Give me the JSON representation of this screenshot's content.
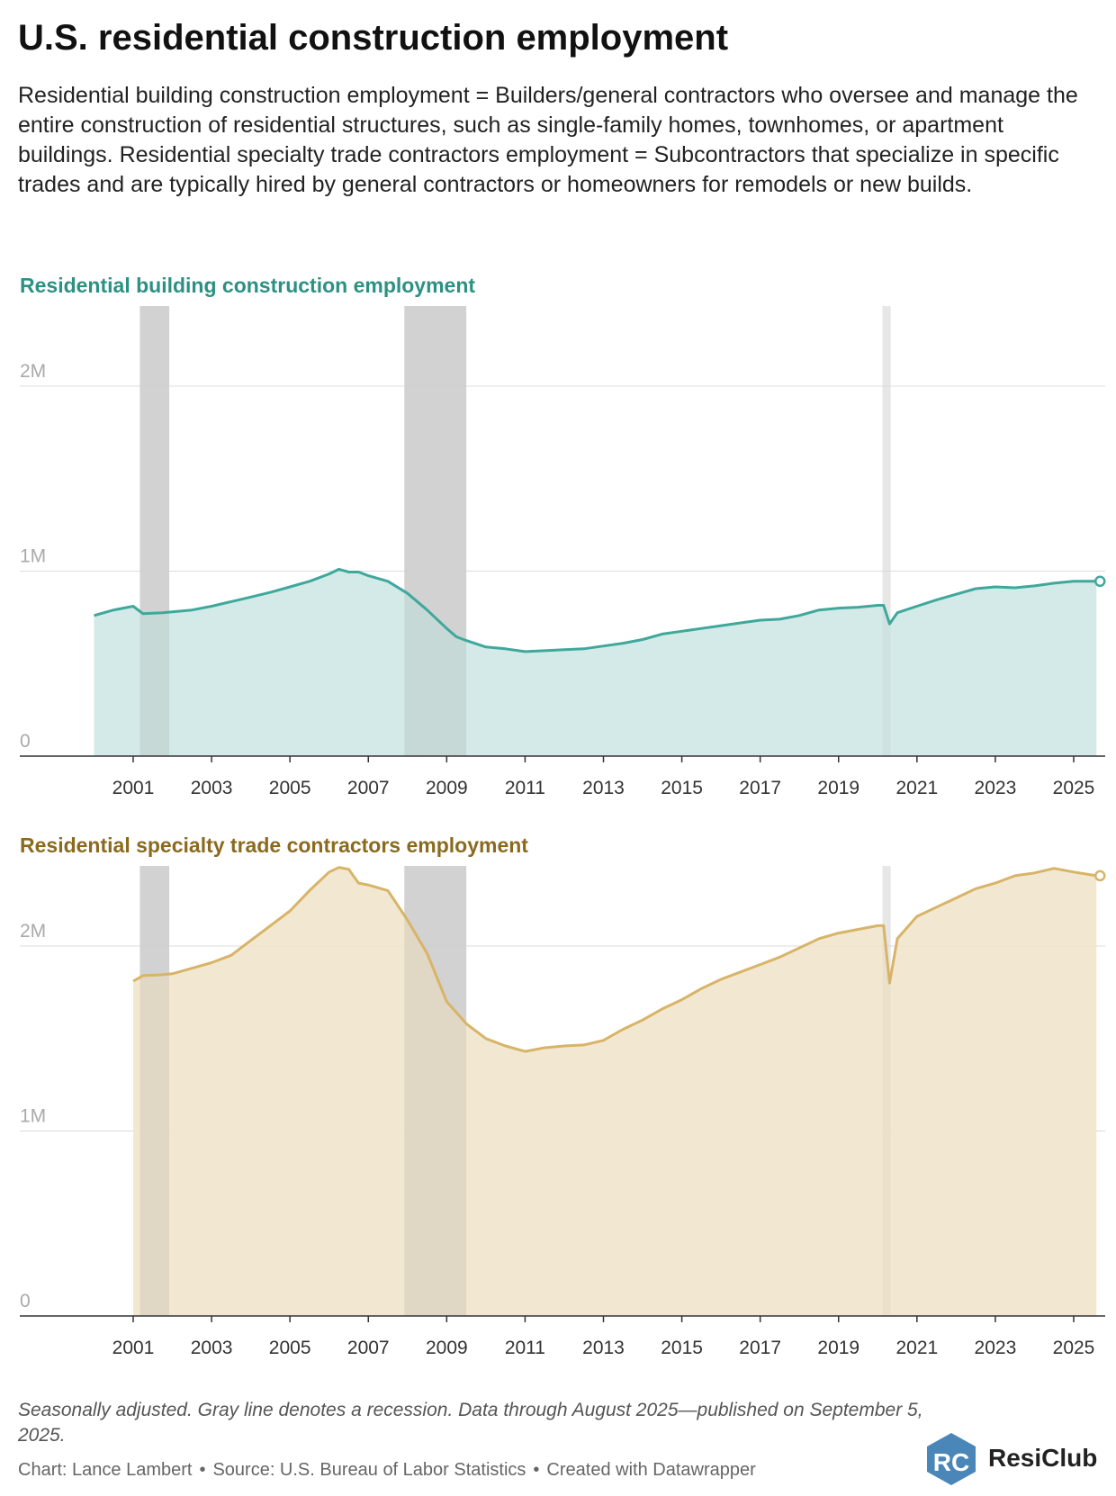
{
  "title": "U.S. residential construction employment",
  "description": "Residential building construction employment = Builders/general contractors who oversee and manage the entire construction of residential structures, such as single-family homes, townhomes, or apartment buildings. Residential specialty trade contractors employment = Subcontractors that specialize in specific trades and are typically hired by general contractors or homeowners for remodels or new builds.",
  "footnote": "Seasonally adjusted. Gray line denotes a recession. Data through August 2025—published on September 5, 2025.",
  "credits": {
    "chart": "Chart: Lance Lambert",
    "source": "Source: U.S. Bureau of Labor Statistics",
    "created": "Created with Datawrapper",
    "separator": "•"
  },
  "logo": {
    "text": "ResiClub",
    "mark_letters": "RC",
    "color": "#4a86b8"
  },
  "colors": {
    "teal": "#3fa89c",
    "teal_fill": "#cfe8e5",
    "teal_title": "#2b9183",
    "gold": "#d8b468",
    "gold_fill": "#f1e6cd",
    "gold_title": "#8b6a1e",
    "recession": "#d9d9d9"
  },
  "chart_data": [
    {
      "type": "area",
      "title": "Residential building construction employment",
      "series_color": "#3fa89c",
      "fill_color": "#cfe8e5",
      "x_ticks": [
        "2001",
        "2003",
        "2005",
        "2007",
        "2009",
        "2011",
        "2013",
        "2015",
        "2017",
        "2019",
        "2021",
        "2023",
        "2025"
      ],
      "y_ticks": [
        {
          "value": 0,
          "label": "0"
        },
        {
          "value": 1000000,
          "label": "1M"
        },
        {
          "value": 2000000,
          "label": "2M"
        }
      ],
      "xlim": [
        1999.0,
        2025.75
      ],
      "ylim": [
        0,
        2420000
      ],
      "grid": true,
      "recessions": [
        [
          2001.17,
          2001.92
        ],
        [
          2007.92,
          2009.5
        ],
        [
          2020.12,
          2020.33
        ]
      ],
      "points": [
        [
          2000.0,
          760000
        ],
        [
          2000.5,
          790000
        ],
        [
          2001.0,
          810000
        ],
        [
          2001.25,
          770000
        ],
        [
          2001.75,
          775000
        ],
        [
          2002.0,
          780000
        ],
        [
          2002.5,
          790000
        ],
        [
          2003.0,
          810000
        ],
        [
          2003.5,
          835000
        ],
        [
          2004.0,
          860000
        ],
        [
          2004.5,
          885000
        ],
        [
          2005.0,
          915000
        ],
        [
          2005.5,
          945000
        ],
        [
          2006.0,
          985000
        ],
        [
          2006.25,
          1010000
        ],
        [
          2006.5,
          995000
        ],
        [
          2006.75,
          995000
        ],
        [
          2007.0,
          975000
        ],
        [
          2007.5,
          945000
        ],
        [
          2008.0,
          880000
        ],
        [
          2008.5,
          790000
        ],
        [
          2009.0,
          690000
        ],
        [
          2009.25,
          645000
        ],
        [
          2009.5,
          625000
        ],
        [
          2010.0,
          590000
        ],
        [
          2010.5,
          580000
        ],
        [
          2011.0,
          565000
        ],
        [
          2011.5,
          570000
        ],
        [
          2012.0,
          575000
        ],
        [
          2012.5,
          580000
        ],
        [
          2013.0,
          595000
        ],
        [
          2013.5,
          610000
        ],
        [
          2014.0,
          630000
        ],
        [
          2014.5,
          660000
        ],
        [
          2015.0,
          675000
        ],
        [
          2015.5,
          690000
        ],
        [
          2016.0,
          705000
        ],
        [
          2016.5,
          720000
        ],
        [
          2017.0,
          735000
        ],
        [
          2017.5,
          740000
        ],
        [
          2018.0,
          760000
        ],
        [
          2018.5,
          790000
        ],
        [
          2019.0,
          800000
        ],
        [
          2019.5,
          805000
        ],
        [
          2020.0,
          815000
        ],
        [
          2020.15,
          815000
        ],
        [
          2020.3,
          715000
        ],
        [
          2020.5,
          775000
        ],
        [
          2021.0,
          810000
        ],
        [
          2021.5,
          845000
        ],
        [
          2022.0,
          875000
        ],
        [
          2022.5,
          905000
        ],
        [
          2023.0,
          915000
        ],
        [
          2023.5,
          910000
        ],
        [
          2024.0,
          920000
        ],
        [
          2024.5,
          935000
        ],
        [
          2025.0,
          945000
        ],
        [
          2025.58,
          945000
        ]
      ]
    },
    {
      "type": "area",
      "title": "Residential specialty trade contractors employment",
      "series_color": "#d8b468",
      "fill_color": "#f1e6cd",
      "x_ticks": [
        "2001",
        "2003",
        "2005",
        "2007",
        "2009",
        "2011",
        "2013",
        "2015",
        "2017",
        "2019",
        "2021",
        "2023",
        "2025"
      ],
      "y_ticks": [
        {
          "value": 0,
          "label": "0"
        },
        {
          "value": 1000000,
          "label": "1M"
        },
        {
          "value": 2000000,
          "label": "2M"
        }
      ],
      "xlim": [
        1999.0,
        2025.75
      ],
      "ylim": [
        0,
        2420000
      ],
      "grid": true,
      "recessions": [
        [
          2001.17,
          2001.92
        ],
        [
          2007.92,
          2009.5
        ],
        [
          2020.12,
          2020.33
        ]
      ],
      "points": [
        [
          2001.0,
          1810000
        ],
        [
          2001.25,
          1840000
        ],
        [
          2001.75,
          1845000
        ],
        [
          2002.0,
          1850000
        ],
        [
          2002.5,
          1880000
        ],
        [
          2003.0,
          1910000
        ],
        [
          2003.5,
          1950000
        ],
        [
          2004.0,
          2030000
        ],
        [
          2004.5,
          2110000
        ],
        [
          2005.0,
          2190000
        ],
        [
          2005.5,
          2300000
        ],
        [
          2006.0,
          2400000
        ],
        [
          2006.25,
          2425000
        ],
        [
          2006.5,
          2415000
        ],
        [
          2006.75,
          2340000
        ],
        [
          2007.0,
          2330000
        ],
        [
          2007.5,
          2300000
        ],
        [
          2008.0,
          2140000
        ],
        [
          2008.5,
          1960000
        ],
        [
          2009.0,
          1700000
        ],
        [
          2009.5,
          1580000
        ],
        [
          2010.0,
          1500000
        ],
        [
          2010.5,
          1460000
        ],
        [
          2011.0,
          1430000
        ],
        [
          2011.5,
          1450000
        ],
        [
          2012.0,
          1460000
        ],
        [
          2012.5,
          1465000
        ],
        [
          2013.0,
          1490000
        ],
        [
          2013.5,
          1550000
        ],
        [
          2014.0,
          1600000
        ],
        [
          2014.5,
          1660000
        ],
        [
          2015.0,
          1710000
        ],
        [
          2015.5,
          1770000
        ],
        [
          2016.0,
          1820000
        ],
        [
          2016.5,
          1860000
        ],
        [
          2017.0,
          1900000
        ],
        [
          2017.5,
          1940000
        ],
        [
          2018.0,
          1990000
        ],
        [
          2018.5,
          2040000
        ],
        [
          2019.0,
          2070000
        ],
        [
          2019.5,
          2090000
        ],
        [
          2020.0,
          2110000
        ],
        [
          2020.15,
          2110000
        ],
        [
          2020.3,
          1800000
        ],
        [
          2020.5,
          2040000
        ],
        [
          2021.0,
          2160000
        ],
        [
          2021.5,
          2210000
        ],
        [
          2022.0,
          2260000
        ],
        [
          2022.5,
          2310000
        ],
        [
          2023.0,
          2340000
        ],
        [
          2023.5,
          2380000
        ],
        [
          2024.0,
          2395000
        ],
        [
          2024.5,
          2420000
        ],
        [
          2025.0,
          2400000
        ],
        [
          2025.58,
          2380000
        ]
      ]
    }
  ]
}
